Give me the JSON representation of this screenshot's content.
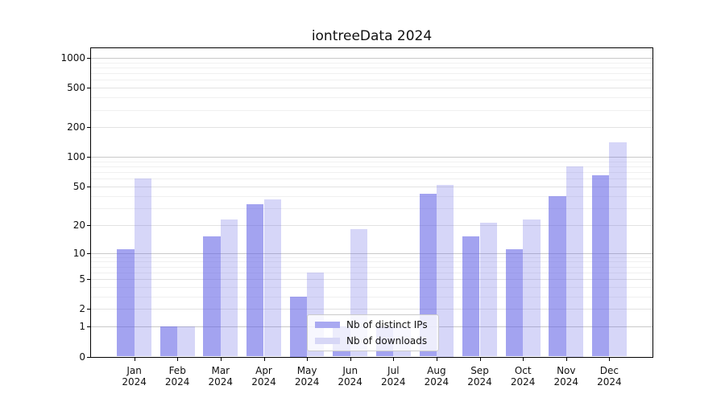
{
  "title": "iontreeData 2024",
  "chart_data": {
    "type": "bar",
    "title": "iontreeData 2024",
    "year": "2024",
    "categories": [
      "Jan",
      "Feb",
      "Mar",
      "Apr",
      "May",
      "Jun",
      "Jul",
      "Aug",
      "Sep",
      "Oct",
      "Nov",
      "Dec"
    ],
    "series": [
      {
        "name": "Nb of distinct IPs",
        "values": [
          11,
          1,
          15,
          33,
          3,
          1,
          1,
          42,
          15,
          11,
          40,
          65
        ],
        "color": "#6666e6",
        "alpha": 0.6,
        "swatch_color": "#a9a9f1"
      },
      {
        "name": "Nb of downloads",
        "values": [
          61,
          1,
          23,
          37,
          6,
          18,
          1,
          52,
          21,
          23,
          81,
          140
        ],
        "color": "#6666e6",
        "alpha": 0.27,
        "swatch_color": "#d7d7f6"
      }
    ],
    "scale": "log1p",
    "ylim": [
      0,
      1250
    ],
    "y_ticks": [
      0,
      1,
      2,
      5,
      10,
      20,
      50,
      100,
      200,
      500,
      1000
    ],
    "y_minor_gridlines": [
      3,
      4,
      6,
      7,
      8,
      9,
      30,
      40,
      60,
      70,
      80,
      90,
      300,
      400,
      600,
      700,
      800,
      900
    ],
    "grid": true,
    "legend_position": "lower center"
  },
  "colors": {
    "bar_ips_rendered": "#a3a3f0",
    "bar_downloads_rendered": "#d6d6f8",
    "grid_power10": "#c9c9c9",
    "grid_labeled": "#e2e2e2",
    "grid_minor": "#f0f0f0",
    "axis": "#000000",
    "legend_border": "#cbcbcb",
    "background": "#ffffff"
  }
}
